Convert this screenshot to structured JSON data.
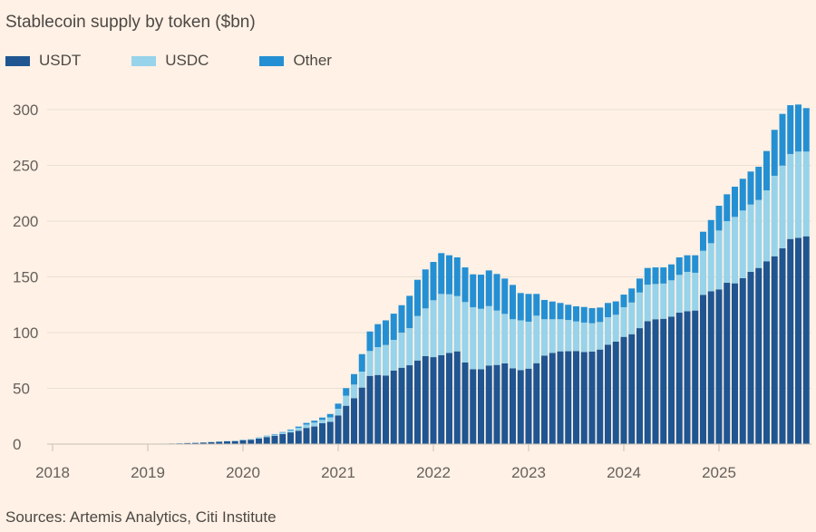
{
  "chart_data": {
    "type": "bar",
    "stacked": true,
    "title": "Stablecoin supply by token ($bn)",
    "source": "Sources: Artemis Analytics, Citi Institute",
    "ylim": [
      0,
      300
    ],
    "yticks": [
      "0",
      "50",
      "100",
      "150",
      "200",
      "250",
      "300"
    ],
    "xticks": [
      "2018",
      "2019",
      "2020",
      "2021",
      "2022",
      "2023",
      "2024",
      "2025"
    ],
    "grid": true,
    "legend_position": "top-left",
    "categories": [
      "2018-01",
      "2018-02",
      "2018-03",
      "2018-04",
      "2018-05",
      "2018-06",
      "2018-07",
      "2018-08",
      "2018-09",
      "2018-10",
      "2018-11",
      "2018-12",
      "2019-01",
      "2019-02",
      "2019-03",
      "2019-04",
      "2019-05",
      "2019-06",
      "2019-07",
      "2019-08",
      "2019-09",
      "2019-10",
      "2019-11",
      "2019-12",
      "2020-01",
      "2020-02",
      "2020-03",
      "2020-04",
      "2020-05",
      "2020-06",
      "2020-07",
      "2020-08",
      "2020-09",
      "2020-10",
      "2020-11",
      "2020-12",
      "2021-01",
      "2021-02",
      "2021-03",
      "2021-04",
      "2021-05",
      "2021-06",
      "2021-07",
      "2021-08",
      "2021-09",
      "2021-10",
      "2021-11",
      "2021-12",
      "2022-01",
      "2022-02",
      "2022-03",
      "2022-04",
      "2022-05",
      "2022-06",
      "2022-07",
      "2022-08",
      "2022-09",
      "2022-10",
      "2022-11",
      "2022-12",
      "2023-01",
      "2023-02",
      "2023-03",
      "2023-04",
      "2023-05",
      "2023-06",
      "2023-07",
      "2023-08",
      "2023-09",
      "2023-10",
      "2023-11",
      "2023-12",
      "2024-01",
      "2024-02",
      "2024-03",
      "2024-04",
      "2024-05",
      "2024-06",
      "2024-07",
      "2024-08",
      "2024-09",
      "2024-10",
      "2024-11",
      "2024-12",
      "2025-01",
      "2025-02",
      "2025-03",
      "2025-04",
      "2025-05",
      "2025-06",
      "2025-07",
      "2025-08",
      "2025-09",
      "2025-10",
      "2025-11",
      "2025-12"
    ],
    "series": [
      {
        "name": "USDT",
        "color": "#1f5591",
        "values": [
          0.1,
          0.1,
          0.1,
          0.1,
          0.1,
          0.1,
          0.1,
          0.1,
          0.1,
          0.1,
          0.1,
          0.2,
          0.3,
          0.3,
          0.4,
          0.5,
          0.7,
          0.9,
          1.1,
          1.4,
          1.8,
          2.1,
          2.5,
          2.7,
          3.5,
          3.9,
          5.0,
          6.3,
          7.5,
          9.0,
          10.5,
          12.0,
          14.5,
          15.8,
          18.7,
          20.0,
          25.7,
          34.4,
          41.2,
          50.7,
          61.2,
          62.0,
          61.5,
          66.0,
          68.5,
          70.7,
          75.0,
          78.9,
          78.0,
          79.7,
          81.8,
          83.2,
          73.2,
          67.2,
          67.2,
          70.5,
          71.0,
          72.4,
          68.0,
          66.4,
          67.7,
          72.6,
          79.4,
          81.8,
          83.2,
          83.3,
          83.5,
          82.6,
          83.0,
          84.8,
          89.2,
          91.9,
          96.2,
          98.6,
          104.0,
          110.3,
          112.0,
          112.4,
          114.4,
          117.9,
          119.2,
          119.8,
          133.9,
          137.1,
          138.8,
          144.7,
          144.2,
          148.8,
          154.5,
          158.0,
          164.0,
          168.5,
          175.6,
          184.0,
          185.1,
          186.4
        ]
      },
      {
        "name": "USDC",
        "color": "#97d3ea",
        "values": [
          0,
          0,
          0,
          0,
          0,
          0,
          0,
          0,
          0,
          0,
          0,
          0,
          0,
          0,
          0.1,
          0.1,
          0.1,
          0.1,
          0.2,
          0.2,
          0.2,
          0.3,
          0.3,
          0.3,
          0.4,
          0.5,
          0.8,
          0.9,
          1.1,
          1.3,
          1.8,
          2.5,
          3.0,
          3.5,
          3.0,
          4.0,
          6.0,
          9.0,
          12.2,
          14.3,
          22.3,
          25.0,
          27.4,
          27.5,
          31.5,
          33.3,
          39.9,
          42.8,
          51.0,
          55.0,
          52.6,
          49.6,
          54.2,
          55.6,
          54.2,
          53.3,
          48.8,
          44.4,
          44.0,
          44.6,
          42.1,
          42.6,
          32.6,
          30.2,
          28.8,
          28.0,
          26.5,
          26.4,
          25.4,
          24.7,
          24.6,
          24.1,
          26.6,
          28.4,
          32.0,
          32.7,
          31.6,
          31.6,
          32.5,
          33.9,
          35.3,
          33.9,
          39.5,
          43.1,
          52.8,
          55.3,
          59.6,
          60.7,
          60.4,
          61.0,
          63.6,
          72.2,
          74.2,
          76.2,
          77.3,
          76.0
        ]
      },
      {
        "name": "Other",
        "color": "#2490d3",
        "values": [
          0,
          0,
          0,
          0,
          0,
          0,
          0,
          0,
          0,
          0,
          0,
          0,
          0,
          0,
          0,
          0,
          0,
          0,
          0,
          0,
          0,
          0,
          0,
          0,
          0.1,
          0.1,
          0.2,
          0.3,
          0.4,
          0.5,
          0.7,
          1.2,
          1.5,
          1.7,
          2.1,
          3.0,
          4.6,
          6.8,
          9.4,
          15.7,
          17.5,
          20.6,
          22.1,
          23.5,
          24.6,
          29.0,
          32.5,
          35.0,
          34.4,
          36.6,
          35.0,
          34.7,
          31.1,
          29.5,
          30.6,
          32.0,
          32.8,
          31.7,
          30.8,
          24.5,
          24.9,
          19.5,
          17.3,
          15.9,
          14.6,
          13.7,
          13.6,
          14.0,
          13.6,
          13.0,
          12.8,
          12.0,
          11.3,
          12.6,
          12.5,
          15.0,
          14.9,
          14.5,
          14.3,
          15.7,
          14.9,
          15.7,
          17.1,
          20.8,
          22.2,
          24.1,
          27.1,
          28.5,
          29.6,
          29.8,
          35.3,
          41.2,
          46.4,
          43.8,
          42.2,
          39.0
        ]
      }
    ]
  }
}
